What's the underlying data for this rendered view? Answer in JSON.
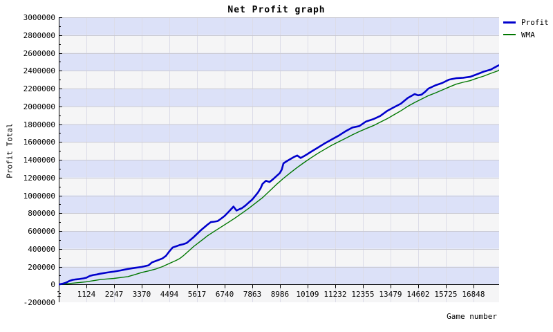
{
  "legend": {
    "items": [
      {
        "label": "Profit",
        "color": "#0000cc"
      },
      {
        "label": "WMA",
        "color": "#007700"
      }
    ]
  },
  "chart_data": {
    "type": "line",
    "title": "Net Profit graph",
    "xlabel": "Game number",
    "ylabel": "Profit Total",
    "xlim": [
      1,
      17890
    ],
    "ylim": [
      -200000,
      3000000
    ],
    "x_ticks": [
      1,
      1124,
      2247,
      3370,
      4494,
      5617,
      6740,
      7863,
      8986,
      10109,
      11232,
      12355,
      13479,
      14602,
      15725,
      16848
    ],
    "y_ticks": [
      3000000,
      2800000,
      2600000,
      2400000,
      2200000,
      2000000,
      1800000,
      1600000,
      1400000,
      1200000,
      1000000,
      800000,
      600000,
      400000,
      200000,
      0,
      -200000
    ],
    "y_minor_step": 100000,
    "grid": true,
    "legend_position": "top-right",
    "band_colors": [
      "#dce1f8",
      "#f5f5f6"
    ],
    "grid_h_color": "#c9c9d2",
    "grid_v_color": "#dcdce8",
    "axis_color": "#000000",
    "series": [
      {
        "name": "Profit",
        "color": "#0000cc",
        "width": 2.6,
        "points": [
          [
            1,
            0
          ],
          [
            150,
            8000
          ],
          [
            280,
            18000
          ],
          [
            420,
            38000
          ],
          [
            560,
            52000
          ],
          [
            700,
            57000
          ],
          [
            840,
            61000
          ],
          [
            1000,
            68000
          ],
          [
            1124,
            76000
          ],
          [
            1260,
            95000
          ],
          [
            1400,
            106000
          ],
          [
            1550,
            112000
          ],
          [
            1690,
            121000
          ],
          [
            1970,
            134000
          ],
          [
            2247,
            145000
          ],
          [
            2530,
            158000
          ],
          [
            2810,
            174000
          ],
          [
            3090,
            186000
          ],
          [
            3370,
            197000
          ],
          [
            3650,
            215000
          ],
          [
            3790,
            248000
          ],
          [
            3930,
            262000
          ],
          [
            4210,
            292000
          ],
          [
            4350,
            320000
          ],
          [
            4490,
            370000
          ],
          [
            4630,
            415000
          ],
          [
            4770,
            428000
          ],
          [
            4910,
            442000
          ],
          [
            5050,
            452000
          ],
          [
            5195,
            465000
          ],
          [
            5476,
            530000
          ],
          [
            5757,
            605000
          ],
          [
            6037,
            670000
          ],
          [
            6180,
            700000
          ],
          [
            6320,
            705000
          ],
          [
            6460,
            712000
          ],
          [
            6600,
            740000
          ],
          [
            6740,
            770000
          ],
          [
            6880,
            810000
          ],
          [
            7020,
            850000
          ],
          [
            7100,
            875000
          ],
          [
            7220,
            830000
          ],
          [
            7340,
            845000
          ],
          [
            7440,
            856000
          ],
          [
            7580,
            885000
          ],
          [
            7720,
            920000
          ],
          [
            7850,
            950000
          ],
          [
            7970,
            990000
          ],
          [
            8090,
            1030000
          ],
          [
            8200,
            1080000
          ],
          [
            8280,
            1130000
          ],
          [
            8420,
            1165000
          ],
          [
            8560,
            1150000
          ],
          [
            8700,
            1180000
          ],
          [
            8840,
            1215000
          ],
          [
            8980,
            1250000
          ],
          [
            9060,
            1290000
          ],
          [
            9130,
            1360000
          ],
          [
            9270,
            1385000
          ],
          [
            9410,
            1408000
          ],
          [
            9550,
            1430000
          ],
          [
            9690,
            1448000
          ],
          [
            9830,
            1420000
          ],
          [
            9970,
            1442000
          ],
          [
            10110,
            1465000
          ],
          [
            10250,
            1490000
          ],
          [
            10530,
            1537000
          ],
          [
            10810,
            1585000
          ],
          [
            11090,
            1628000
          ],
          [
            11370,
            1670000
          ],
          [
            11650,
            1720000
          ],
          [
            11930,
            1762000
          ],
          [
            12210,
            1778000
          ],
          [
            12490,
            1830000
          ],
          [
            12780,
            1856000
          ],
          [
            13060,
            1892000
          ],
          [
            13340,
            1948000
          ],
          [
            13620,
            1990000
          ],
          [
            13900,
            2030000
          ],
          [
            14180,
            2094000
          ],
          [
            14460,
            2138000
          ],
          [
            14600,
            2124000
          ],
          [
            14740,
            2132000
          ],
          [
            14880,
            2162000
          ],
          [
            15020,
            2200000
          ],
          [
            15300,
            2236000
          ],
          [
            15580,
            2262000
          ],
          [
            15860,
            2300000
          ],
          [
            16140,
            2316000
          ],
          [
            16430,
            2321000
          ],
          [
            16710,
            2331000
          ],
          [
            16990,
            2360000
          ],
          [
            17270,
            2390000
          ],
          [
            17550,
            2413000
          ],
          [
            17830,
            2455000
          ],
          [
            17890,
            2462000
          ]
        ]
      },
      {
        "name": "WMA",
        "color": "#007700",
        "width": 1.4,
        "points": [
          [
            1,
            0
          ],
          [
            280,
            6000
          ],
          [
            560,
            14000
          ],
          [
            840,
            22000
          ],
          [
            1124,
            30000
          ],
          [
            1400,
            42000
          ],
          [
            1690,
            55000
          ],
          [
            1970,
            62000
          ],
          [
            2247,
            68000
          ],
          [
            2530,
            78000
          ],
          [
            2810,
            88000
          ],
          [
            3090,
            110000
          ],
          [
            3370,
            135000
          ],
          [
            3650,
            152000
          ],
          [
            3930,
            172000
          ],
          [
            4210,
            200000
          ],
          [
            4490,
            235000
          ],
          [
            4770,
            270000
          ],
          [
            4910,
            290000
          ],
          [
            5050,
            320000
          ],
          [
            5195,
            355000
          ],
          [
            5340,
            390000
          ],
          [
            5476,
            425000
          ],
          [
            5617,
            455000
          ],
          [
            5757,
            485000
          ],
          [
            5900,
            515000
          ],
          [
            6037,
            545000
          ],
          [
            6318,
            595000
          ],
          [
            6598,
            645000
          ],
          [
            6879,
            695000
          ],
          [
            7160,
            745000
          ],
          [
            7441,
            800000
          ],
          [
            7721,
            855000
          ],
          [
            8002,
            915000
          ],
          [
            8283,
            975000
          ],
          [
            8563,
            1048000
          ],
          [
            8844,
            1123000
          ],
          [
            9125,
            1190000
          ],
          [
            9406,
            1253000
          ],
          [
            9686,
            1313000
          ],
          [
            9967,
            1369000
          ],
          [
            10248,
            1422000
          ],
          [
            10529,
            1472000
          ],
          [
            10810,
            1518000
          ],
          [
            11090,
            1563000
          ],
          [
            11371,
            1602000
          ],
          [
            11652,
            1641000
          ],
          [
            11932,
            1680000
          ],
          [
            12213,
            1718000
          ],
          [
            12494,
            1751000
          ],
          [
            12775,
            1783000
          ],
          [
            13055,
            1822000
          ],
          [
            13336,
            1860000
          ],
          [
            13617,
            1905000
          ],
          [
            13898,
            1950000
          ],
          [
            14178,
            2000000
          ],
          [
            14459,
            2042000
          ],
          [
            14740,
            2082000
          ],
          [
            15021,
            2120000
          ],
          [
            15302,
            2150000
          ],
          [
            15582,
            2184000
          ],
          [
            15863,
            2217000
          ],
          [
            16144,
            2249000
          ],
          [
            16424,
            2270000
          ],
          [
            16705,
            2288000
          ],
          [
            16986,
            2315000
          ],
          [
            17266,
            2340000
          ],
          [
            17547,
            2370000
          ],
          [
            17828,
            2397000
          ],
          [
            17890,
            2408000
          ]
        ]
      }
    ]
  }
}
